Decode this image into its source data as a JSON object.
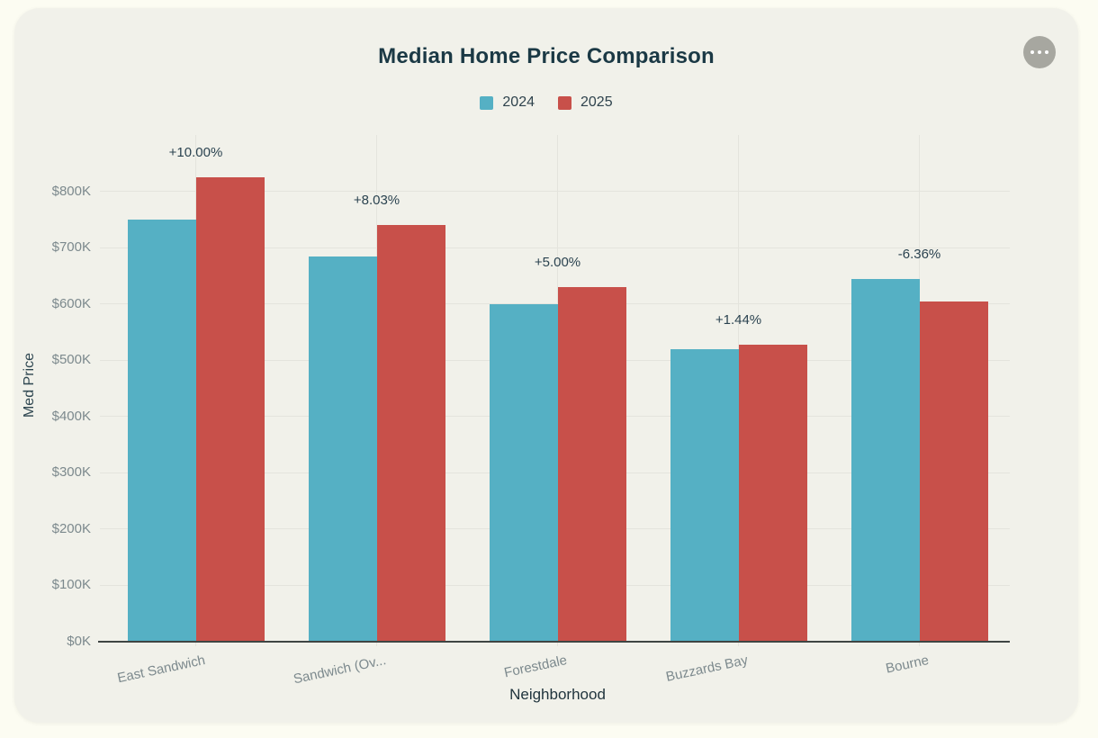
{
  "card": {
    "menu_button": {
      "icon": "ellipsis-icon"
    }
  },
  "chart_data": {
    "type": "bar",
    "title": "Median Home Price Comparison",
    "xlabel": "Neighborhood",
    "ylabel": "Med Price",
    "categories": [
      "East Sandwich",
      "Sandwich (Ov...",
      "Forestdale",
      "Buzzards Bay",
      "Bourne"
    ],
    "series": [
      {
        "name": "2024",
        "color": "#55B0C4",
        "values": [
          750000,
          685000,
          600000,
          520000,
          645000
        ]
      },
      {
        "name": "2025",
        "color": "#C8504A",
        "values": [
          825000,
          740000,
          630000,
          527500,
          604000
        ]
      }
    ],
    "annotations": [
      "+10.00%",
      "+8.03%",
      "+5.00%",
      "+1.44%",
      "-6.36%"
    ],
    "y_ticks": [
      {
        "value": 0,
        "label": "$0K"
      },
      {
        "value": 100000,
        "label": "$100K"
      },
      {
        "value": 200000,
        "label": "$200K"
      },
      {
        "value": 300000,
        "label": "$300K"
      },
      {
        "value": 400000,
        "label": "$400K"
      },
      {
        "value": 500000,
        "label": "$500K"
      },
      {
        "value": 600000,
        "label": "$600K"
      },
      {
        "value": 700000,
        "label": "$700K"
      },
      {
        "value": 800000,
        "label": "$800K"
      }
    ],
    "ylim": [
      0,
      900000
    ],
    "grid": true,
    "legend_position": "top-center"
  }
}
